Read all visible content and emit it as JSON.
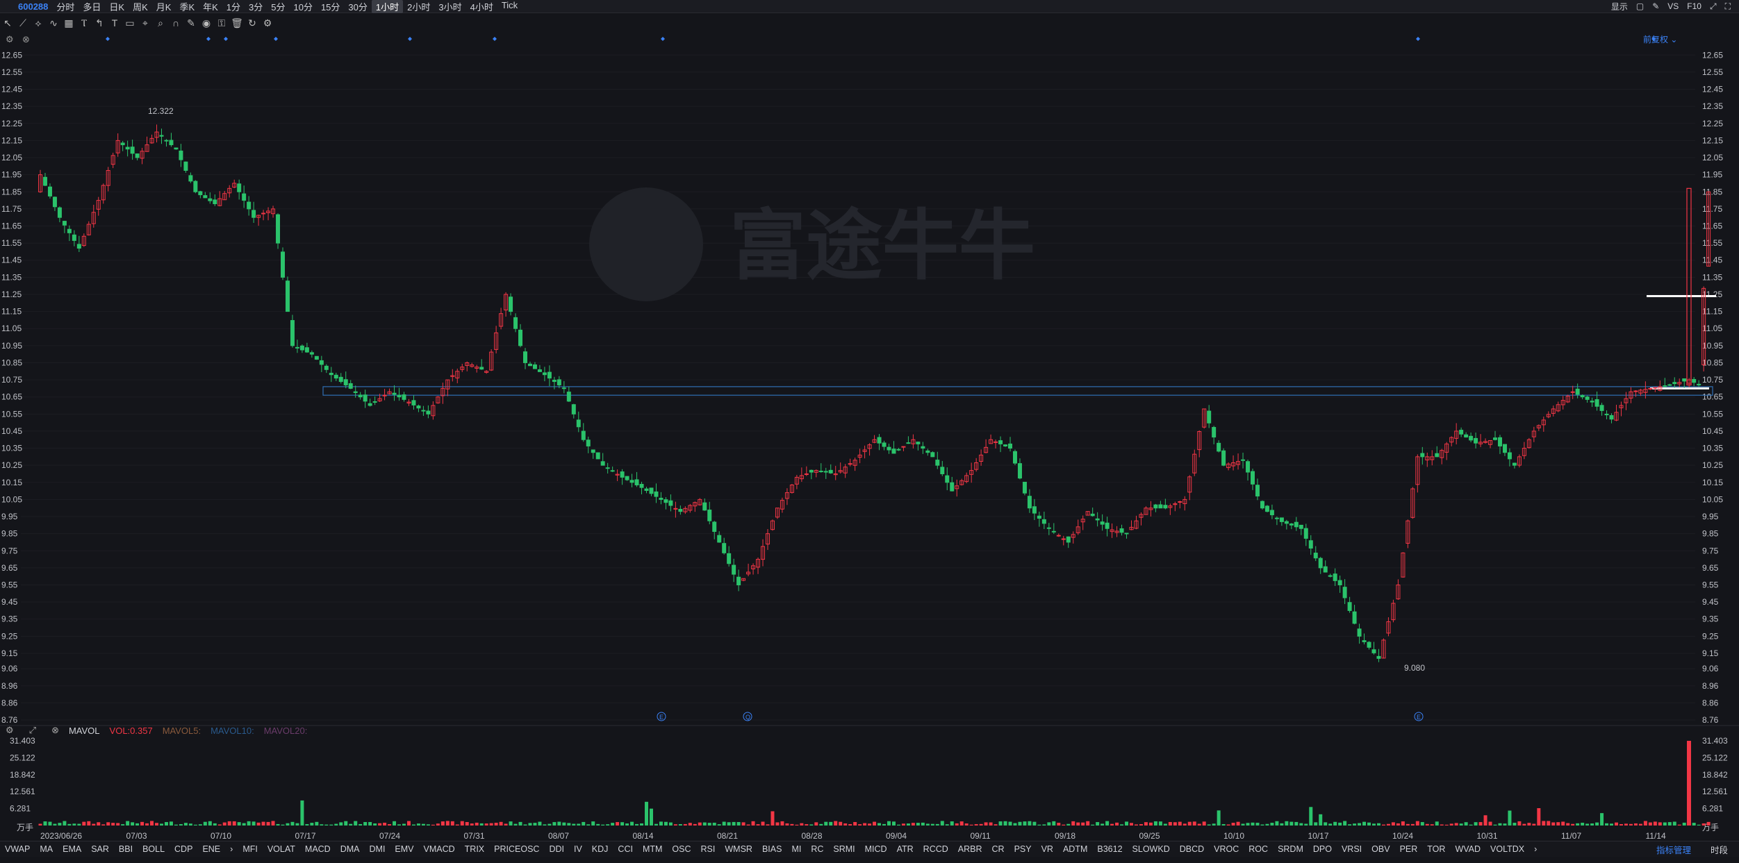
{
  "header": {
    "symbol": "600288",
    "timeframes": [
      "分时",
      "多日",
      "日K",
      "周K",
      "月K",
      "季K",
      "年K",
      "1分",
      "3分",
      "5分",
      "10分",
      "15分",
      "30分",
      "1小时",
      "2小时",
      "3小时",
      "4小时",
      "Tick"
    ],
    "active_timeframe": "1小时",
    "right_items": [
      "显示",
      "VS",
      "F10"
    ]
  },
  "toolbar": {
    "adjust_label": "前复权",
    "icons": [
      "cursor-icon",
      "trendline-icon",
      "channel-icon",
      "wave-icon",
      "pattern-icon",
      "fib-icon",
      "arrow-icon",
      "text-icon",
      "note-icon",
      "measure-icon",
      "zoom-icon",
      "magnet-icon",
      "pencil-icon",
      "eye-icon",
      "lock-icon",
      "trash-icon",
      "sync-icon",
      "settings-icon"
    ]
  },
  "chart_data": {
    "type": "candlestick",
    "watermark": "富途牛牛",
    "y_ticks": [
      "12.65",
      "12.55",
      "12.45",
      "12.35",
      "12.25",
      "12.15",
      "12.05",
      "11.95",
      "11.85",
      "11.75",
      "11.65",
      "11.55",
      "11.45",
      "11.35",
      "11.25",
      "11.15",
      "11.05",
      "10.95",
      "10.85",
      "10.75",
      "10.65",
      "10.55",
      "10.45",
      "10.35",
      "10.25",
      "10.15",
      "10.05",
      "9.95",
      "9.85",
      "9.75",
      "9.65",
      "9.55",
      "9.45",
      "9.35",
      "9.25",
      "9.15",
      "9.06",
      "8.96",
      "8.86",
      "8.76"
    ],
    "ylim": [
      8.76,
      12.7
    ],
    "x_labels": [
      "2023/06/26",
      "07/03",
      "07/10",
      "07/17",
      "07/24",
      "07/31",
      "08/07",
      "08/14",
      "08/21",
      "08/28",
      "09/04",
      "09/11",
      "09/18",
      "09/25",
      "10/10",
      "10/17",
      "10/24",
      "10/31",
      "11/07",
      "11/14"
    ],
    "high_label": "12.322",
    "low_label": "9.080",
    "event_markers": [
      "E",
      "Q",
      "E"
    ],
    "anchor_points": [
      [
        0,
        11.95
      ],
      [
        4,
        11.7
      ],
      [
        8,
        11.52
      ],
      [
        12,
        11.8
      ],
      [
        16,
        12.15
      ],
      [
        20,
        12.05
      ],
      [
        24,
        12.2
      ],
      [
        28,
        12.1
      ],
      [
        32,
        11.85
      ],
      [
        36,
        11.78
      ],
      [
        40,
        11.9
      ],
      [
        44,
        11.7
      ],
      [
        48,
        11.75
      ],
      [
        52,
        10.95
      ],
      [
        56,
        10.9
      ],
      [
        60,
        10.78
      ],
      [
        64,
        10.7
      ],
      [
        68,
        10.6
      ],
      [
        72,
        10.68
      ],
      [
        76,
        10.62
      ],
      [
        80,
        10.55
      ],
      [
        84,
        10.75
      ],
      [
        88,
        10.85
      ],
      [
        92,
        10.8
      ],
      [
        96,
        11.25
      ],
      [
        100,
        10.85
      ],
      [
        104,
        10.78
      ],
      [
        108,
        10.7
      ],
      [
        112,
        10.4
      ],
      [
        116,
        10.25
      ],
      [
        120,
        10.18
      ],
      [
        124,
        10.12
      ],
      [
        128,
        10.05
      ],
      [
        132,
        9.98
      ],
      [
        136,
        10.05
      ],
      [
        140,
        9.8
      ],
      [
        144,
        9.55
      ],
      [
        148,
        9.7
      ],
      [
        152,
        10.0
      ],
      [
        156,
        10.18
      ],
      [
        160,
        10.22
      ],
      [
        164,
        10.2
      ],
      [
        168,
        10.28
      ],
      [
        172,
        10.4
      ],
      [
        176,
        10.32
      ],
      [
        180,
        10.4
      ],
      [
        184,
        10.3
      ],
      [
        188,
        10.1
      ],
      [
        192,
        10.22
      ],
      [
        196,
        10.4
      ],
      [
        200,
        10.35
      ],
      [
        204,
        10.0
      ],
      [
        208,
        9.88
      ],
      [
        212,
        9.8
      ],
      [
        216,
        9.98
      ],
      [
        220,
        9.88
      ],
      [
        224,
        9.85
      ],
      [
        228,
        10.0
      ],
      [
        232,
        10.0
      ],
      [
        236,
        10.05
      ],
      [
        240,
        10.58
      ],
      [
        244,
        10.25
      ],
      [
        248,
        10.28
      ],
      [
        252,
        10.0
      ],
      [
        256,
        9.92
      ],
      [
        260,
        9.88
      ],
      [
        264,
        9.65
      ],
      [
        268,
        9.55
      ],
      [
        272,
        9.25
      ],
      [
        276,
        9.12
      ],
      [
        280,
        9.55
      ],
      [
        284,
        10.3
      ],
      [
        288,
        10.3
      ],
      [
        292,
        10.45
      ],
      [
        296,
        10.38
      ],
      [
        300,
        10.4
      ],
      [
        304,
        10.25
      ],
      [
        308,
        10.45
      ],
      [
        312,
        10.58
      ],
      [
        316,
        10.68
      ],
      [
        320,
        10.62
      ],
      [
        324,
        10.52
      ],
      [
        328,
        10.68
      ],
      [
        332,
        10.7
      ],
      [
        336,
        10.72
      ],
      [
        340,
        10.75
      ],
      [
        342,
        10.72
      ],
      [
        344,
        11.85
      ]
    ],
    "volume_ylim": [
      0,
      31.403
    ],
    "volume_ticks": [
      "31.403",
      "25.122",
      "18.842",
      "12.561",
      "6.281"
    ],
    "volume_unit": "万手",
    "volume_header": {
      "name": "MAVOL",
      "vol": "VOL:0.357",
      "ma5": "MAVOL5:",
      "ma10": "MAVOL10:",
      "ma20": "MAVOL20:"
    }
  },
  "indicators": [
    "VWAP",
    "MA",
    "EMA",
    "SAR",
    "BBI",
    "BOLL",
    "CDP",
    "ENE",
    "›",
    "MFI",
    "VOLAT",
    "MACD",
    "DMA",
    "DMI",
    "EMV",
    "VMACD",
    "TRIX",
    "PRICEOSC",
    "DDI",
    "IV",
    "KDJ",
    "CCI",
    "MTM",
    "OSC",
    "RSI",
    "WMSR",
    "BIAS",
    "MI",
    "RC",
    "SRMI",
    "MICD",
    "ATR",
    "RCCD",
    "ARBR",
    "CR",
    "PSY",
    "VR",
    "ADTM",
    "B3612",
    "SLOWKD",
    "DBCD",
    "VROC",
    "ROC",
    "SRDM",
    "DPO",
    "VRSI",
    "OBV",
    "PER",
    "TOR",
    "WVAD",
    "VOLTDX",
    "›"
  ],
  "indicator_manager": "指标管理",
  "bottom_right": "时段",
  "colors": {
    "up": "#f23645",
    "down": "#2bc36b",
    "bg": "#14151a",
    "grid": "#1f2026",
    "accent": "#3b82f6"
  }
}
